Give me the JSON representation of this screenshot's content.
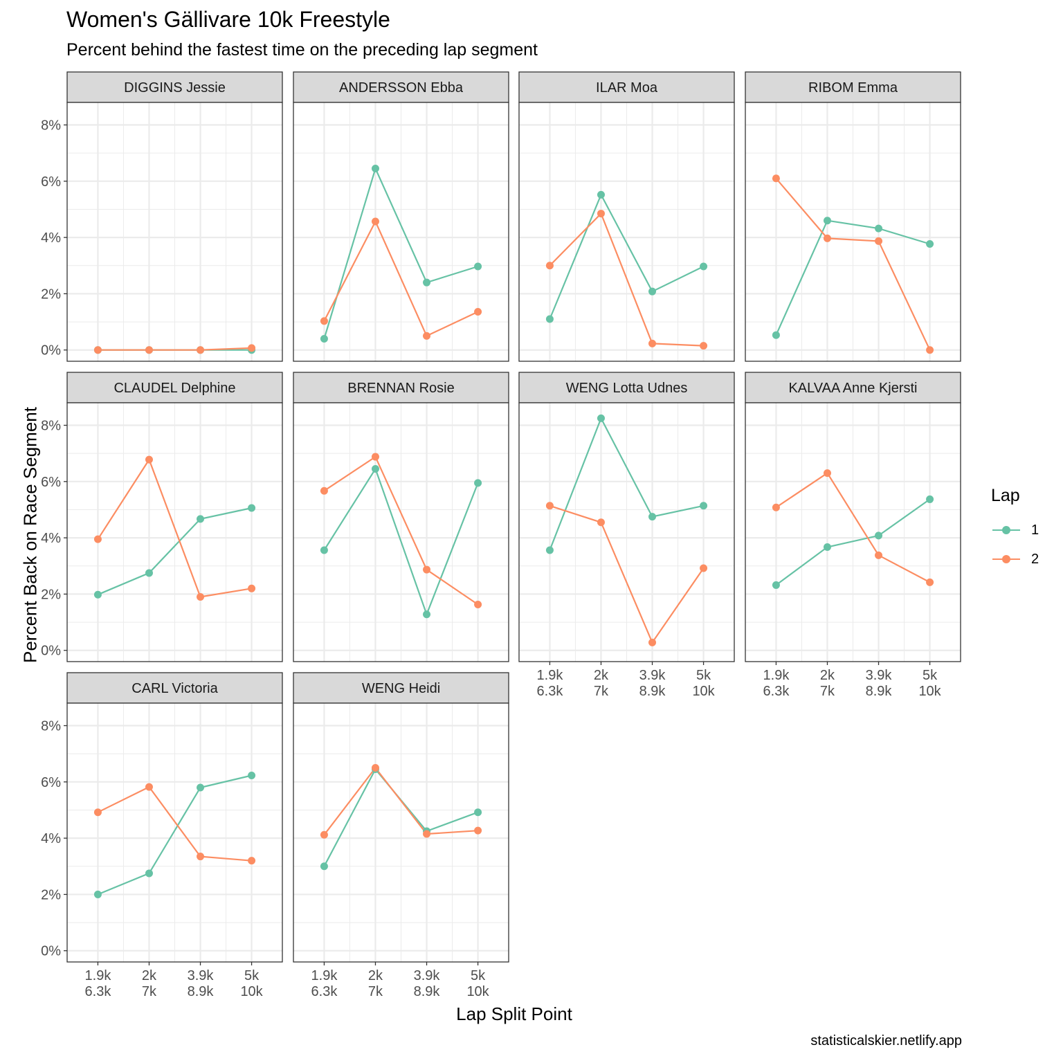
{
  "title": "Women's Gällivare 10k Freestyle",
  "subtitle": "Percent behind the fastest time on the preceding lap segment",
  "caption": "statisticalskier.netlify.app",
  "chart_data": {
    "type": "line",
    "xlabel": "Lap Split Point",
    "ylabel": "Percent Back on Race Segment",
    "x_categories": [
      [
        "1.9k",
        "6.3k"
      ],
      [
        "2k",
        "7k"
      ],
      [
        "3.9k",
        "8.9k"
      ],
      [
        "5k",
        "10k"
      ]
    ],
    "y_ticks": [
      "0%",
      "2%",
      "4%",
      "6%",
      "8%"
    ],
    "ylim": [
      0,
      8.8
    ],
    "legend": {
      "title": "Lap",
      "position": "right",
      "entries": [
        {
          "name": "1",
          "color": "#66C2A5"
        },
        {
          "name": "2",
          "color": "#FC8D62"
        }
      ]
    },
    "facets": [
      {
        "name": "DIGGINS Jessie",
        "series": [
          {
            "lap": "1",
            "values": [
              0.0,
              0.0,
              0.0,
              0.0
            ]
          },
          {
            "lap": "2",
            "values": [
              0.0,
              0.0,
              0.0,
              0.07
            ]
          }
        ]
      },
      {
        "name": "ANDERSSON Ebba",
        "series": [
          {
            "lap": "1",
            "values": [
              0.4,
              6.45,
              2.4,
              2.97
            ]
          },
          {
            "lap": "2",
            "values": [
              1.03,
              4.57,
              0.5,
              1.36
            ]
          }
        ]
      },
      {
        "name": "ILAR Moa",
        "series": [
          {
            "lap": "1",
            "values": [
              1.1,
              5.52,
              2.08,
              2.97
            ]
          },
          {
            "lap": "2",
            "values": [
              3.0,
              4.85,
              0.23,
              0.15
            ]
          }
        ]
      },
      {
        "name": "RIBOM Emma",
        "series": [
          {
            "lap": "1",
            "values": [
              0.53,
              4.6,
              4.32,
              3.77
            ]
          },
          {
            "lap": "2",
            "values": [
              6.1,
              3.97,
              3.87,
              0.0
            ]
          }
        ]
      },
      {
        "name": "CLAUDEL Delphine",
        "series": [
          {
            "lap": "1",
            "values": [
              1.98,
              2.75,
              4.67,
              5.06
            ]
          },
          {
            "lap": "2",
            "values": [
              3.95,
              6.78,
              1.9,
              2.2
            ]
          }
        ]
      },
      {
        "name": "BRENNAN Rosie",
        "series": [
          {
            "lap": "1",
            "values": [
              3.56,
              6.45,
              1.28,
              5.95
            ]
          },
          {
            "lap": "2",
            "values": [
              5.67,
              6.88,
              2.87,
              1.63
            ]
          }
        ]
      },
      {
        "name": "WENG Lotta Udnes",
        "series": [
          {
            "lap": "1",
            "values": [
              3.56,
              8.25,
              4.75,
              5.14
            ]
          },
          {
            "lap": "2",
            "values": [
              5.14,
              4.55,
              0.28,
              2.92
            ]
          }
        ]
      },
      {
        "name": "KALVAA Anne Kjersti",
        "series": [
          {
            "lap": "1",
            "values": [
              2.32,
              3.67,
              4.08,
              5.37
            ]
          },
          {
            "lap": "2",
            "values": [
              5.08,
              6.3,
              3.38,
              2.42
            ]
          }
        ]
      },
      {
        "name": "CARL Victoria",
        "series": [
          {
            "lap": "1",
            "values": [
              2.0,
              2.75,
              5.8,
              6.23
            ]
          },
          {
            "lap": "2",
            "values": [
              4.92,
              5.82,
              3.35,
              3.2
            ]
          }
        ]
      },
      {
        "name": "WENG Heidi",
        "series": [
          {
            "lap": "1",
            "values": [
              3.0,
              6.45,
              4.25,
              4.92
            ]
          },
          {
            "lap": "2",
            "values": [
              4.12,
              6.5,
              4.15,
              4.27
            ]
          }
        ]
      }
    ]
  }
}
